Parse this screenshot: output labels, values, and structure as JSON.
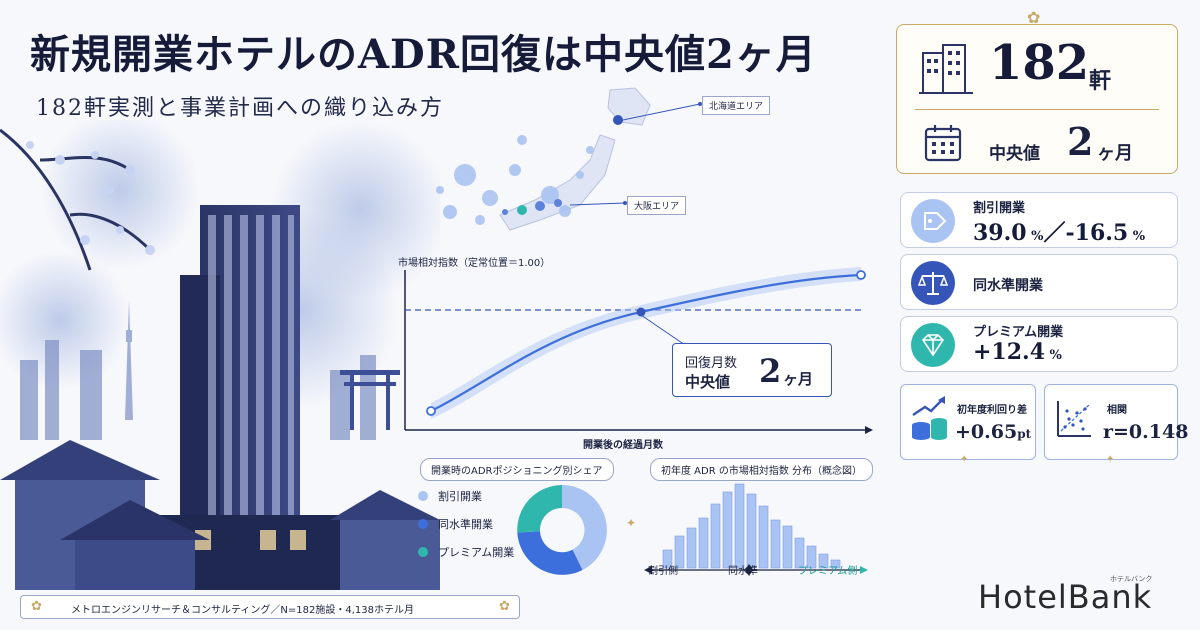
{
  "header": {
    "title": "新規開業ホテルのADR回復は中央値2ヶ月",
    "subtitle": "182軒実測と事業計画への織り込み方"
  },
  "map": {
    "hokkaido_label": "北海道エリア",
    "osaka_label": "大阪エリア"
  },
  "recovery_chart": {
    "y_title": "市場相対指数（定常位置＝1.00）",
    "x_title": "開業後の経過月数",
    "callout": {
      "line1": "回復月数",
      "line2": "中央値",
      "number": "2",
      "unit": "ヶ月"
    }
  },
  "share_chart": {
    "title": "開業時のADRポジショニング別シェア",
    "legend": [
      {
        "label": "割引開業",
        "color": "#a9c3f2"
      },
      {
        "label": "同水準開業",
        "color": "#3d6fdc"
      },
      {
        "label": "プレミアム開業",
        "color": "#2fb7ae"
      }
    ]
  },
  "distribution_chart": {
    "title": "初年度 ADR の市場相対指数 分布（概念図）",
    "left_label": "割引側",
    "center_label": "同水準",
    "right_label": "プレミアム側"
  },
  "kpis": {
    "hotels_value": "182",
    "hotels_unit": "軒",
    "median_label": "中央値",
    "median_value": "2",
    "median_unit": "ヶ月",
    "discount": {
      "label": "割引開業",
      "value_a": "39.0",
      "unit_a": "%",
      "sep": "／",
      "value_b": "-16.5",
      "unit_b": "%"
    },
    "same_level": {
      "label": "同水準開業"
    },
    "premium": {
      "label": "プレミアム開業",
      "value": "+12.4",
      "unit": "%"
    },
    "yield_spread": {
      "label": "初年度利回り差",
      "value": "+0.65",
      "unit": "pt"
    },
    "correlation": {
      "label": "相関",
      "value": "r=0.148"
    }
  },
  "footer": {
    "source": "メトロエンジンリサーチ＆コンサルティング／N=182施設・4,138ホテル月"
  },
  "brand": {
    "name": "HotelBank",
    "kana": "ホテルバンク"
  },
  "colors": {
    "navy": "#151b38",
    "accent_blue": "#3d6fdc",
    "light_blue": "#a9c3f2",
    "teal": "#2fb7ae",
    "gold": "#c8a968"
  }
}
